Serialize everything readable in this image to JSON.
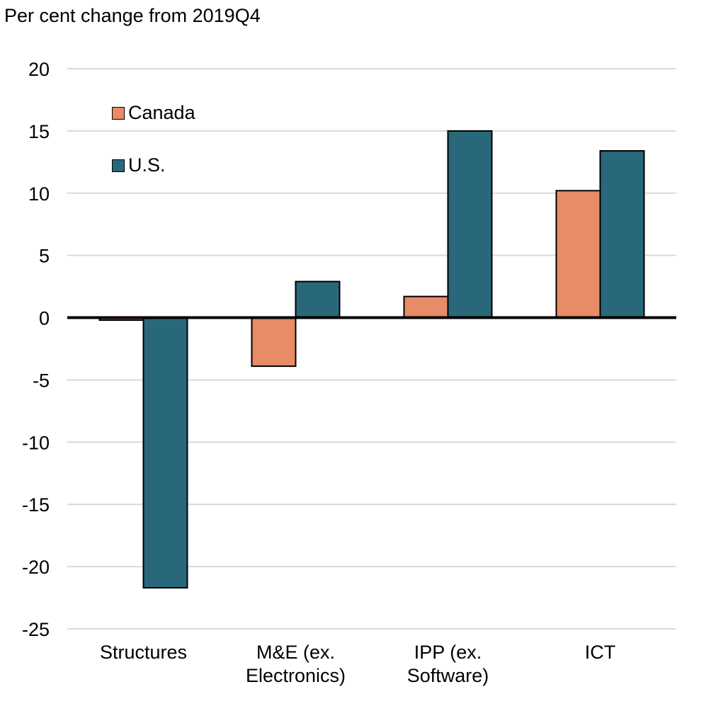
{
  "chart_data": {
    "type": "bar",
    "ylabel": "Per cent change from 2019Q4",
    "categories": [
      "Structures",
      "M&E (ex.\nElectronics)",
      "IPP (ex.\nSoftware)",
      "ICT"
    ],
    "series": [
      {
        "name": "Canada",
        "color": "#E88B67",
        "values": [
          -0.2,
          -3.9,
          1.7,
          10.2
        ]
      },
      {
        "name": "U.S.",
        "color": "#29687A",
        "values": [
          -21.7,
          2.9,
          15.0,
          13.4
        ]
      }
    ],
    "yticks": [
      20,
      15,
      10,
      5,
      0,
      -5,
      -10,
      -15,
      -20,
      -25
    ],
    "ylim": [
      -25,
      20
    ],
    "grid": true,
    "legend": "top-left"
  }
}
